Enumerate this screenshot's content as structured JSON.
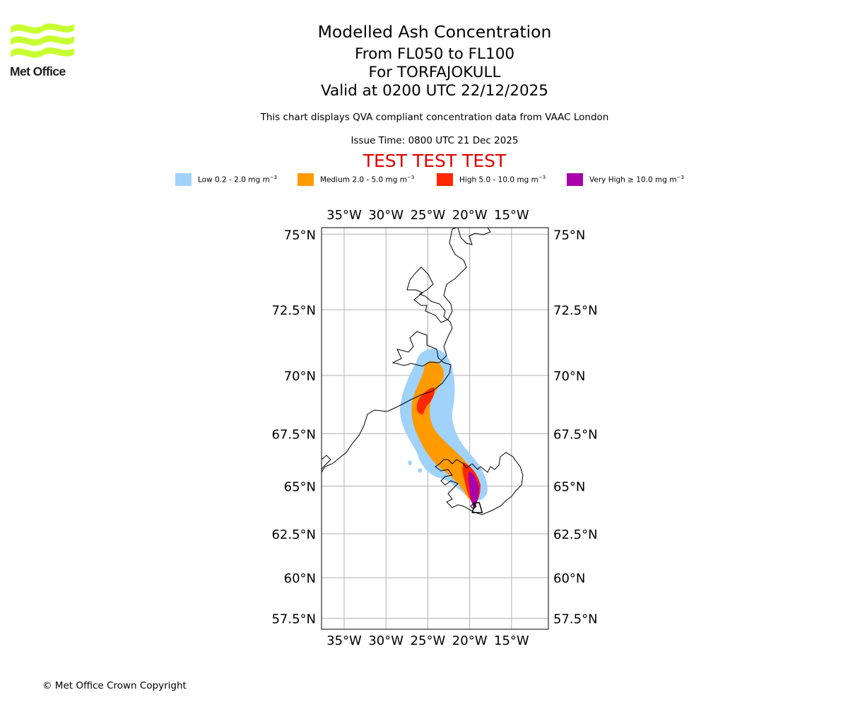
{
  "logo": {
    "name": "Met Office",
    "color": "#c8ff32"
  },
  "title": {
    "main": "Modelled Ash Concentration",
    "level": "From FL050 to FL100",
    "volcano": "For TORFAJOKULL",
    "valid": "Valid at 0200 UTC 22/12/2025"
  },
  "subtitle": {
    "compliance": "This chart displays QVA compliant concentration data from VAAC London",
    "issue_time": "Issue Time: 0800 UTC 21 Dec 2025"
  },
  "test_banner": "TEST TEST TEST",
  "legend": [
    {
      "label": "Low 0.2 - 2.0 mg m",
      "unit_exp": "−3",
      "color": "#a0d2fa"
    },
    {
      "label": "Medium 2.0 - 5.0 mg m",
      "unit_exp": "−3",
      "color": "#ff9a00"
    },
    {
      "label": "High 5.0 - 10.0 mg m",
      "unit_exp": "−3",
      "color": "#ff2800"
    },
    {
      "label": "Very High  ≥  10.0 mg m",
      "unit_exp": "−3",
      "color": "#aa00aa"
    }
  ],
  "map": {
    "lon_ticks": [
      {
        "value": -35,
        "label": "35°W"
      },
      {
        "value": -30,
        "label": "30°W"
      },
      {
        "value": -25,
        "label": "25°W"
      },
      {
        "value": -20,
        "label": "20°W"
      },
      {
        "value": -15,
        "label": "15°W"
      }
    ],
    "lat_ticks": [
      {
        "value": 75,
        "label": "75°N"
      },
      {
        "value": 72.5,
        "label": "72.5°N"
      },
      {
        "value": 70,
        "label": "70°N"
      },
      {
        "value": 67.5,
        "label": "67.5°N"
      },
      {
        "value": 65,
        "label": "65°N"
      },
      {
        "value": 62.5,
        "label": "62.5°N"
      },
      {
        "value": 60,
        "label": "60°N"
      },
      {
        "value": 57.5,
        "label": "57.5°N"
      }
    ],
    "lon_range": [
      -37.7,
      -10.6
    ],
    "lat_range": [
      56.8,
      75.2
    ],
    "grid_color": "#b0b0b0",
    "coast_color": "#000000",
    "volcano": {
      "lon": -19.1,
      "lat": 63.9
    }
  },
  "copyright": "© Met Office Crown Copyright"
}
